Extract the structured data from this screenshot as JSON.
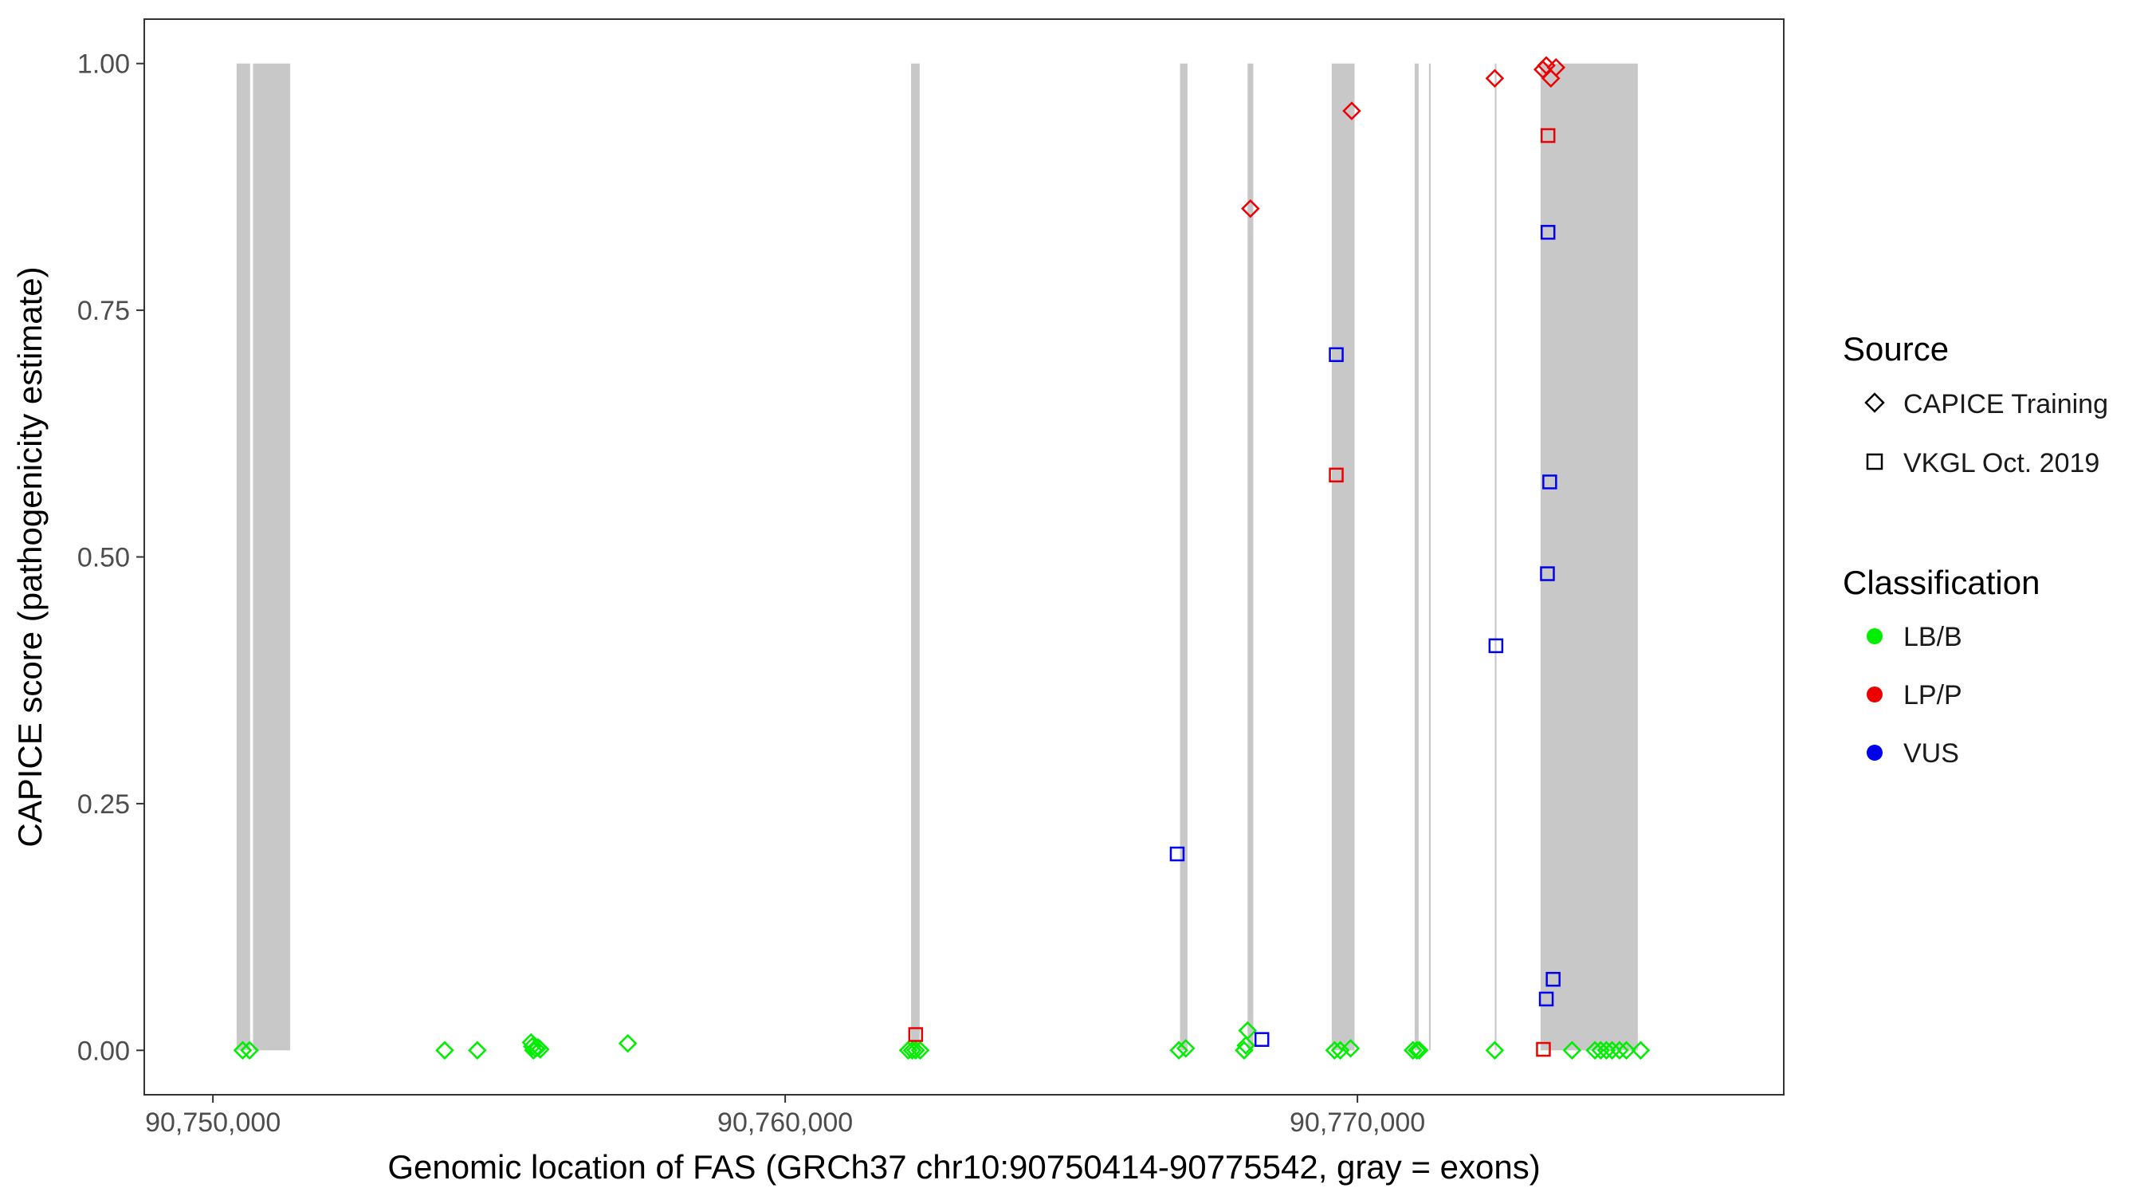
{
  "chart_data": {
    "type": "scatter",
    "xlabel": "Genomic location of FAS (GRCh37 chr10:90750414-90775542, gray = exons)",
    "ylabel": "CAPICE score (pathogenicity estimate)",
    "xlim": [
      90748800,
      90777450
    ],
    "ylim": [
      -0.045,
      1.045
    ],
    "x_ticks": [
      90750000,
      90760000,
      90770000
    ],
    "x_tick_labels": [
      "90,750,000",
      "90,760,000",
      "90,770,000"
    ],
    "y_ticks": [
      0,
      0.25,
      0.5,
      0.75,
      1.0
    ],
    "y_tick_labels": [
      "0.00",
      "0.25",
      "0.50",
      "0.75",
      "1.00"
    ],
    "grid": false,
    "legend_position": "right",
    "exons": [
      [
        90750414,
        90750650
      ],
      [
        90750700,
        90751350
      ],
      [
        90762200,
        90762350
      ],
      [
        90766900,
        90767030
      ],
      [
        90768080,
        90768180
      ],
      [
        90769550,
        90769950
      ],
      [
        90771000,
        90771070
      ],
      [
        90771250,
        90771280
      ],
      [
        90772400,
        90772430
      ],
      [
        90773200,
        90774900
      ]
    ],
    "legend": {
      "source_title": "Source",
      "source_items": [
        {
          "label": "CAPICE Training",
          "shape": "diamond"
        },
        {
          "label": "VKGL Oct. 2019",
          "shape": "square"
        }
      ],
      "class_title": "Classification",
      "class_items": [
        {
          "label": "LB/B",
          "color": "#00ee00"
        },
        {
          "label": "LP/P",
          "color": "#ee0000"
        },
        {
          "label": "VUS",
          "color": "#0000ee"
        }
      ]
    },
    "colors": {
      "LB/B": "#00ee00",
      "LP/P": "#ee0000",
      "VUS": "#0000ee",
      "exon": "#c8c8c8"
    },
    "points": [
      {
        "x": 90750520,
        "y": 0.0,
        "source": "CAPICE Training",
        "class": "LB/B"
      },
      {
        "x": 90750640,
        "y": 0.0,
        "source": "CAPICE Training",
        "class": "LB/B"
      },
      {
        "x": 90754050,
        "y": 0.0,
        "source": "CAPICE Training",
        "class": "LB/B"
      },
      {
        "x": 90754620,
        "y": 0.0,
        "source": "CAPICE Training",
        "class": "LB/B"
      },
      {
        "x": 90755560,
        "y": 0.008,
        "source": "CAPICE Training",
        "class": "LB/B"
      },
      {
        "x": 90755580,
        "y": 0.004,
        "source": "CAPICE Training",
        "class": "LB/B"
      },
      {
        "x": 90755600,
        "y": 0.0,
        "source": "CAPICE Training",
        "class": "LB/B"
      },
      {
        "x": 90755640,
        "y": 0.002,
        "source": "CAPICE Training",
        "class": "LB/B"
      },
      {
        "x": 90755680,
        "y": 0.003,
        "source": "CAPICE Training",
        "class": "LB/B"
      },
      {
        "x": 90755720,
        "y": 0.001,
        "source": "CAPICE Training",
        "class": "LB/B"
      },
      {
        "x": 90757250,
        "y": 0.007,
        "source": "CAPICE Training",
        "class": "LB/B"
      },
      {
        "x": 90762150,
        "y": 0.0,
        "source": "CAPICE Training",
        "class": "LB/B"
      },
      {
        "x": 90762220,
        "y": 0.0,
        "source": "CAPICE Training",
        "class": "LB/B"
      },
      {
        "x": 90762280,
        "y": 0.0,
        "source": "CAPICE Training",
        "class": "LB/B"
      },
      {
        "x": 90762360,
        "y": 0.0,
        "source": "CAPICE Training",
        "class": "LB/B"
      },
      {
        "x": 90762280,
        "y": 0.016,
        "source": "VKGL Oct. 2019",
        "class": "LP/P"
      },
      {
        "x": 90766880,
        "y": 0.0,
        "source": "CAPICE Training",
        "class": "LB/B"
      },
      {
        "x": 90767000,
        "y": 0.002,
        "source": "CAPICE Training",
        "class": "LB/B"
      },
      {
        "x": 90766850,
        "y": 0.199,
        "source": "VKGL Oct. 2019",
        "class": "VUS"
      },
      {
        "x": 90768020,
        "y": 0.0,
        "source": "CAPICE Training",
        "class": "LB/B"
      },
      {
        "x": 90768050,
        "y": 0.005,
        "source": "CAPICE Training",
        "class": "LB/B"
      },
      {
        "x": 90768080,
        "y": 0.02,
        "source": "CAPICE Training",
        "class": "LB/B"
      },
      {
        "x": 90768130,
        "y": 0.853,
        "source": "CAPICE Training",
        "class": "LP/P"
      },
      {
        "x": 90768330,
        "y": 0.011,
        "source": "VKGL Oct. 2019",
        "class": "VUS"
      },
      {
        "x": 90769600,
        "y": 0.0,
        "source": "CAPICE Training",
        "class": "LB/B"
      },
      {
        "x": 90769700,
        "y": 0.0,
        "source": "CAPICE Training",
        "class": "LB/B"
      },
      {
        "x": 90769880,
        "y": 0.002,
        "source": "CAPICE Training",
        "class": "LB/B"
      },
      {
        "x": 90769900,
        "y": 0.952,
        "source": "CAPICE Training",
        "class": "LP/P"
      },
      {
        "x": 90769630,
        "y": 0.705,
        "source": "VKGL Oct. 2019",
        "class": "VUS"
      },
      {
        "x": 90769630,
        "y": 0.583,
        "source": "VKGL Oct. 2019",
        "class": "LP/P"
      },
      {
        "x": 90770970,
        "y": 0.0,
        "source": "CAPICE Training",
        "class": "LB/B"
      },
      {
        "x": 90771040,
        "y": 0.0,
        "source": "CAPICE Training",
        "class": "LB/B"
      },
      {
        "x": 90771080,
        "y": 0.0,
        "source": "CAPICE Training",
        "class": "LB/B"
      },
      {
        "x": 90772400,
        "y": 0.0,
        "source": "CAPICE Training",
        "class": "LB/B"
      },
      {
        "x": 90772400,
        "y": 0.985,
        "source": "CAPICE Training",
        "class": "LP/P"
      },
      {
        "x": 90772420,
        "y": 0.41,
        "source": "VKGL Oct. 2019",
        "class": "VUS"
      },
      {
        "x": 90773240,
        "y": 0.994,
        "source": "CAPICE Training",
        "class": "LP/P"
      },
      {
        "x": 90773300,
        "y": 0.998,
        "source": "CAPICE Training",
        "class": "LP/P"
      },
      {
        "x": 90773380,
        "y": 0.985,
        "source": "CAPICE Training",
        "class": "LP/P"
      },
      {
        "x": 90773470,
        "y": 0.996,
        "source": "CAPICE Training",
        "class": "LP/P"
      },
      {
        "x": 90773330,
        "y": 0.927,
        "source": "VKGL Oct. 2019",
        "class": "LP/P"
      },
      {
        "x": 90773330,
        "y": 0.829,
        "source": "VKGL Oct. 2019",
        "class": "VUS"
      },
      {
        "x": 90773360,
        "y": 0.576,
        "source": "VKGL Oct. 2019",
        "class": "VUS"
      },
      {
        "x": 90773320,
        "y": 0.483,
        "source": "VKGL Oct. 2019",
        "class": "VUS"
      },
      {
        "x": 90773420,
        "y": 0.072,
        "source": "VKGL Oct. 2019",
        "class": "VUS"
      },
      {
        "x": 90773300,
        "y": 0.052,
        "source": "VKGL Oct. 2019",
        "class": "VUS"
      },
      {
        "x": 90773250,
        "y": 0.001,
        "source": "VKGL Oct. 2019",
        "class": "LP/P"
      },
      {
        "x": 90773750,
        "y": 0.0,
        "source": "CAPICE Training",
        "class": "LB/B"
      },
      {
        "x": 90774150,
        "y": 0.0,
        "source": "CAPICE Training",
        "class": "LB/B"
      },
      {
        "x": 90774250,
        "y": 0.0,
        "source": "CAPICE Training",
        "class": "LB/B"
      },
      {
        "x": 90774350,
        "y": 0.0,
        "source": "CAPICE Training",
        "class": "LB/B"
      },
      {
        "x": 90774450,
        "y": 0.0,
        "source": "CAPICE Training",
        "class": "LB/B"
      },
      {
        "x": 90774580,
        "y": 0.0,
        "source": "CAPICE Training",
        "class": "LB/B"
      },
      {
        "x": 90774700,
        "y": 0.0,
        "source": "CAPICE Training",
        "class": "LB/B"
      },
      {
        "x": 90774950,
        "y": 0.0,
        "source": "CAPICE Training",
        "class": "LB/B"
      }
    ]
  }
}
